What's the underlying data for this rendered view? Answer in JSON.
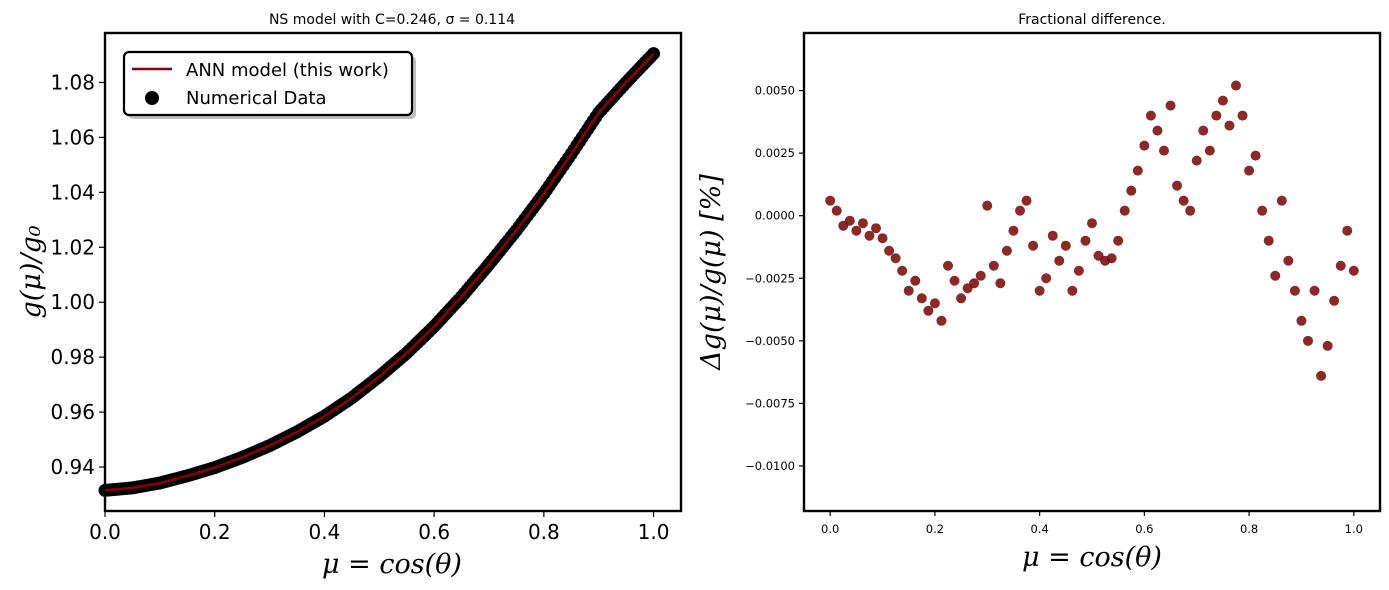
{
  "chart_data": [
    {
      "type": "line",
      "title": "NS model with C=0.246, σ = 0.114",
      "xlabel": "μ = cos(θ)",
      "ylabel": "g(μ)/g₀",
      "xlim": [
        0.0,
        1.05
      ],
      "ylim": [
        0.924,
        1.098
      ],
      "xticks": [
        "0.0",
        "0.2",
        "0.4",
        "0.6",
        "0.8",
        "1.0"
      ],
      "yticks": [
        "0.94",
        "0.96",
        "0.98",
        "1.00",
        "1.02",
        "1.04",
        "1.06",
        "1.08"
      ],
      "grid": false,
      "legend_position": "upper-left",
      "series": [
        {
          "name": "ANN model (this work)",
          "kind": "line",
          "color": "#8b0000",
          "x": [
            0.0,
            0.05,
            0.1,
            0.15,
            0.2,
            0.25,
            0.3,
            0.35,
            0.4,
            0.45,
            0.5,
            0.55,
            0.6,
            0.65,
            0.7,
            0.75,
            0.8,
            0.85,
            0.9,
            0.95,
            1.0
          ],
          "y": [
            0.9315,
            0.9324,
            0.9342,
            0.9368,
            0.9398,
            0.9435,
            0.9478,
            0.9528,
            0.9585,
            0.9652,
            0.973,
            0.9815,
            0.9912,
            1.002,
            1.0138,
            1.0262,
            1.0395,
            1.054,
            1.069,
            1.08,
            1.0905
          ]
        },
        {
          "name": "Numerical Data",
          "kind": "scatter",
          "color": "#000000",
          "x": [
            0.0,
            0.05,
            0.1,
            0.15,
            0.2,
            0.25,
            0.3,
            0.35,
            0.4,
            0.45,
            0.5,
            0.55,
            0.6,
            0.65,
            0.7,
            0.75,
            0.8,
            0.85,
            0.9,
            0.95,
            1.0
          ],
          "y": [
            0.9315,
            0.9324,
            0.9342,
            0.9368,
            0.9398,
            0.9435,
            0.9478,
            0.9528,
            0.9585,
            0.9652,
            0.973,
            0.9815,
            0.9912,
            1.002,
            1.0138,
            1.0262,
            1.0395,
            1.054,
            1.069,
            1.08,
            1.0905
          ]
        }
      ]
    },
    {
      "type": "scatter",
      "title": "Fractional difference.",
      "xlabel": "μ = cos(θ)",
      "ylabel": "Δg(μ)/g(μ)  [%]",
      "xlim": [
        -0.05,
        1.05
      ],
      "ylim": [
        -0.0118,
        0.0073
      ],
      "xticks": [
        "0.0",
        "0.2",
        "0.4",
        "0.6",
        "0.8",
        "1.0"
      ],
      "yticks": [
        "−0.0100",
        "−0.0075",
        "−0.0050",
        "−0.0025",
        "0.0000",
        "0.0025",
        "0.0050"
      ],
      "grid": false,
      "color": "#7b0a0a",
      "x": [
        0.0,
        0.0125,
        0.025,
        0.0375,
        0.05,
        0.0625,
        0.075,
        0.0875,
        0.1,
        0.1125,
        0.125,
        0.1375,
        0.15,
        0.1625,
        0.175,
        0.1875,
        0.2,
        0.2125,
        0.225,
        0.2375,
        0.25,
        0.2625,
        0.275,
        0.2875,
        0.3,
        0.3125,
        0.325,
        0.3375,
        0.35,
        0.3625,
        0.375,
        0.3875,
        0.4,
        0.4125,
        0.425,
        0.4375,
        0.45,
        0.4625,
        0.475,
        0.4875,
        0.5,
        0.5125,
        0.525,
        0.5375,
        0.55,
        0.5625,
        0.575,
        0.5875,
        0.6,
        0.6125,
        0.625,
        0.6375,
        0.65,
        0.6625,
        0.675,
        0.6875,
        0.7,
        0.7125,
        0.725,
        0.7375,
        0.75,
        0.7625,
        0.775,
        0.7875,
        0.8,
        0.8125,
        0.825,
        0.8375,
        0.85,
        0.8625,
        0.875,
        0.8875,
        0.9,
        0.9125,
        0.925,
        0.9375,
        0.95,
        0.9625,
        0.975,
        0.9875,
        1.0
      ],
      "y": [
        0.0006,
        0.0002,
        -0.0004,
        -0.0002,
        -0.0006,
        -0.0003,
        -0.0008,
        -0.0005,
        -0.0009,
        -0.0014,
        -0.0017,
        -0.0022,
        -0.003,
        -0.0026,
        -0.0033,
        -0.0038,
        -0.0035,
        -0.0042,
        -0.002,
        -0.0026,
        -0.0033,
        -0.0029,
        -0.0027,
        -0.0024,
        0.0004,
        -0.002,
        -0.0027,
        -0.0014,
        -0.0006,
        0.0002,
        0.0006,
        -0.0012,
        -0.003,
        -0.0025,
        -0.0008,
        -0.0018,
        -0.0012,
        -0.003,
        -0.0022,
        -0.001,
        -0.0003,
        -0.0016,
        -0.0018,
        -0.0017,
        -0.001,
        0.0002,
        0.001,
        0.0018,
        0.0028,
        0.004,
        0.0034,
        0.0026,
        0.0044,
        0.0012,
        0.0006,
        0.0002,
        0.0022,
        0.0034,
        0.0026,
        0.004,
        0.0046,
        0.0036,
        0.0052,
        0.004,
        0.0018,
        0.0024,
        0.0002,
        -0.001,
        -0.0024,
        0.0006,
        -0.0018,
        -0.003,
        -0.0042,
        -0.005,
        -0.003,
        -0.0064,
        -0.0052,
        -0.0034,
        -0.002,
        -0.0006,
        -0.0022
      ]
    }
  ]
}
